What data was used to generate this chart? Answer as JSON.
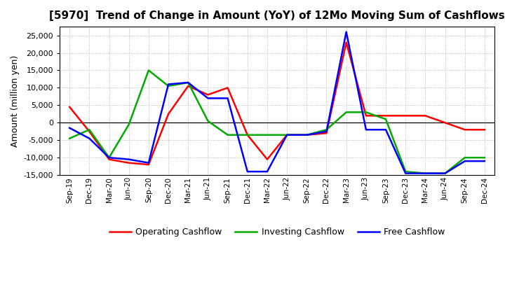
{
  "title": "[5970]  Trend of Change in Amount (YoY) of 12Mo Moving Sum of Cashflows",
  "ylabel": "Amount (million yen)",
  "x_labels": [
    "Sep-19",
    "Dec-19",
    "Mar-20",
    "Jun-20",
    "Sep-20",
    "Dec-20",
    "Mar-21",
    "Jun-21",
    "Sep-21",
    "Dec-21",
    "Mar-22",
    "Jun-22",
    "Sep-22",
    "Dec-22",
    "Mar-23",
    "Jun-23",
    "Sep-23",
    "Dec-23",
    "Mar-24",
    "Jun-24",
    "Sep-24",
    "Dec-24"
  ],
  "operating": [
    4500,
    -2500,
    -10500,
    -11500,
    -12000,
    2500,
    10500,
    8000,
    10000,
    -3500,
    -10500,
    -3500,
    -3500,
    -3000,
    23000,
    2000,
    2000,
    2000,
    2000,
    0,
    -2000,
    -2000
  ],
  "investing": [
    -4500,
    -2000,
    -10000,
    -500,
    15000,
    10500,
    11500,
    500,
    -3500,
    -3500,
    -3500,
    -3500,
    -3500,
    -2000,
    3000,
    3000,
    1000,
    -14000,
    -14500,
    -14500,
    -10000,
    -10000
  ],
  "free": [
    -1500,
    -4500,
    -10000,
    -10500,
    -11500,
    11000,
    11500,
    7000,
    7000,
    -14000,
    -14000,
    -3500,
    -3500,
    -2500,
    26000,
    -2000,
    -2000,
    -14500,
    -14500,
    -14500,
    -11000,
    -11000
  ],
  "operating_color": "#FF0000",
  "investing_color": "#00AA00",
  "free_color": "#0000FF",
  "ylim": [
    -15000,
    27500
  ],
  "yticks": [
    -15000,
    -10000,
    -5000,
    0,
    5000,
    10000,
    15000,
    20000,
    25000
  ],
  "background_color": "#FFFFFF",
  "grid_color": "#AAAAAA",
  "title_fontsize": 11,
  "ylabel_fontsize": 9,
  "tick_fontsize": 8,
  "xtick_fontsize": 7.5,
  "legend_fontsize": 9
}
